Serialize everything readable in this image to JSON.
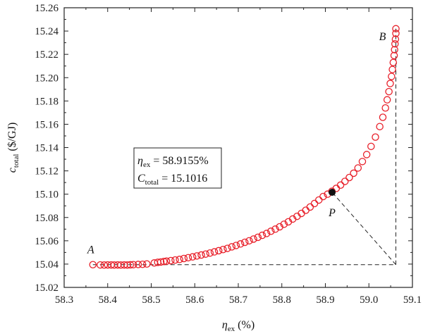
{
  "chart_data": {
    "type": "scatter",
    "title": "",
    "xlabel": {
      "symbol": "η",
      "subscript": "ex",
      "unit": " (%)"
    },
    "ylabel": {
      "symbol": "c",
      "subscript": "total",
      "unit": " ($/GJ)"
    },
    "xlim": [
      58.3,
      59.1
    ],
    "ylim": [
      15.02,
      15.26
    ],
    "x_ticks": [
      "58.3",
      "58.4",
      "58.5",
      "58.6",
      "58.7",
      "58.8",
      "58.9",
      "59.0",
      "59.1"
    ],
    "y_ticks": [
      "15.02",
      "15.04",
      "15.06",
      "15.08",
      "15.10",
      "15.12",
      "15.14",
      "15.16",
      "15.18",
      "15.20",
      "15.22",
      "15.24",
      "15.26"
    ],
    "grid": false,
    "marker_color": "#e8202a",
    "highlight_color": "#111111",
    "series": [
      {
        "marker": "open-circle",
        "points": [
          [
            58.366,
            15.0395
          ],
          [
            58.383,
            15.0393
          ],
          [
            58.392,
            15.0392
          ],
          [
            58.4,
            15.0393
          ],
          [
            58.408,
            15.0393
          ],
          [
            58.415,
            15.0392
          ],
          [
            58.423,
            15.0393
          ],
          [
            58.43,
            15.0392
          ],
          [
            58.438,
            15.0393
          ],
          [
            58.445,
            15.0392
          ],
          [
            58.452,
            15.0394
          ],
          [
            58.459,
            15.0395
          ],
          [
            58.47,
            15.0397
          ],
          [
            58.48,
            15.0398
          ],
          [
            58.49,
            15.0401
          ],
          [
            58.507,
            15.041
          ],
          [
            58.515,
            15.0415
          ],
          [
            58.522,
            15.0418
          ],
          [
            58.529,
            15.0422
          ],
          [
            58.535,
            15.0425
          ],
          [
            58.545,
            15.043
          ],
          [
            58.555,
            15.0435
          ],
          [
            58.565,
            15.044
          ],
          [
            58.575,
            15.0448
          ],
          [
            58.585,
            15.0455
          ],
          [
            58.595,
            15.0462
          ],
          [
            58.605,
            15.047
          ],
          [
            58.615,
            15.0478
          ],
          [
            58.625,
            15.0486
          ],
          [
            58.635,
            15.0495
          ],
          [
            58.645,
            15.0505
          ],
          [
            58.655,
            15.0515
          ],
          [
            58.665,
            15.0525
          ],
          [
            58.675,
            15.0535
          ],
          [
            58.685,
            15.0548
          ],
          [
            58.695,
            15.056
          ],
          [
            58.705,
            15.0573
          ],
          [
            58.715,
            15.0587
          ],
          [
            58.725,
            15.06
          ],
          [
            58.735,
            15.0615
          ],
          [
            58.745,
            15.063
          ],
          [
            58.755,
            15.0647
          ],
          [
            58.765,
            15.0663
          ],
          [
            58.775,
            15.0682
          ],
          [
            58.785,
            15.07
          ],
          [
            58.795,
            15.072
          ],
          [
            58.805,
            15.0742
          ],
          [
            58.815,
            15.0763
          ],
          [
            58.825,
            15.0787
          ],
          [
            58.835,
            15.081
          ],
          [
            58.845,
            15.0835
          ],
          [
            58.855,
            15.0862
          ],
          [
            58.865,
            15.089
          ],
          [
            58.875,
            15.092
          ],
          [
            58.885,
            15.095
          ],
          [
            58.895,
            15.098
          ],
          [
            58.905,
            15.1
          ],
          [
            58.915,
            15.1025
          ],
          [
            58.925,
            15.105
          ],
          [
            58.935,
            15.1078
          ],
          [
            58.945,
            15.111
          ],
          [
            58.955,
            15.1143
          ],
          [
            58.965,
            15.118
          ],
          [
            58.975,
            15.1225
          ],
          [
            58.985,
            15.128
          ],
          [
            58.995,
            15.134
          ],
          [
            59.005,
            15.141
          ],
          [
            59.015,
            15.149
          ],
          [
            59.025,
            15.158
          ],
          [
            59.032,
            15.166
          ],
          [
            59.038,
            15.174
          ],
          [
            59.042,
            15.181
          ],
          [
            59.046,
            15.188
          ],
          [
            59.049,
            15.195
          ],
          [
            59.052,
            15.201
          ],
          [
            59.054,
            15.207
          ],
          [
            59.056,
            15.213
          ],
          [
            59.058,
            15.219
          ],
          [
            59.059,
            15.224
          ],
          [
            59.06,
            15.229
          ],
          [
            59.061,
            15.233
          ],
          [
            59.062,
            15.238
          ],
          [
            59.062,
            15.242
          ]
        ]
      }
    ],
    "annotations": {
      "A": {
        "label": "A",
        "x": 58.366,
        "y": 15.0395
      },
      "B": {
        "label": "B",
        "x": 59.062,
        "y": 15.242
      },
      "P": {
        "label": "P",
        "x": 58.9155,
        "y": 15.1016
      },
      "corner": {
        "x": 59.062,
        "y": 15.0395
      }
    },
    "info_box": {
      "line1": {
        "symbol": "η",
        "subscript": "ex",
        "value": " = 58.9155%"
      },
      "line2": {
        "symbol": "C",
        "subscript": "total",
        "value": " = 15.1016"
      }
    }
  }
}
